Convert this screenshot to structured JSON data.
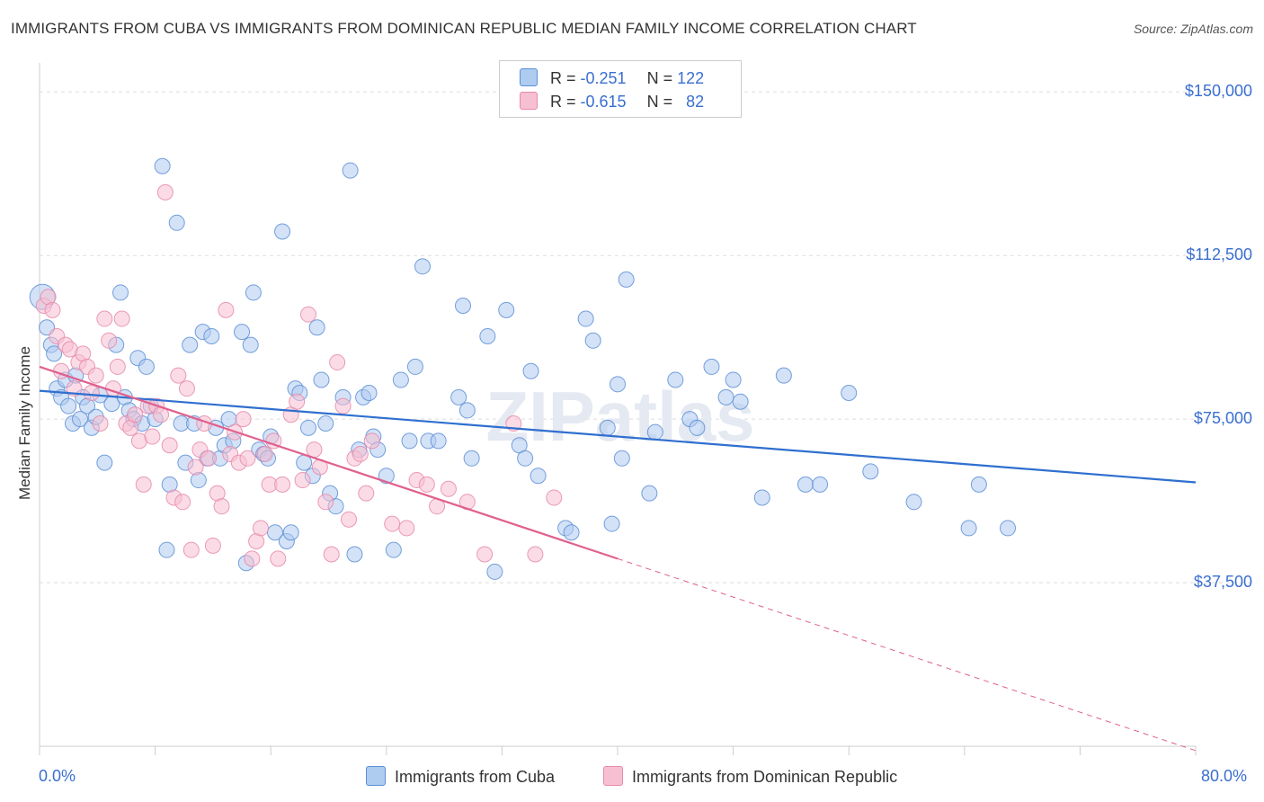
{
  "title": "IMMIGRANTS FROM CUBA VS IMMIGRANTS FROM DOMINICAN REPUBLIC MEDIAN FAMILY INCOME CORRELATION CHART",
  "source": "Source: ZipAtlas.com",
  "watermark": "ZIPatlas",
  "legend": {
    "rows": [
      {
        "r_label": "R =",
        "r_value": "-0.251",
        "n_label": "N =",
        "n_value": "122"
      },
      {
        "r_label": "R =",
        "r_value": "-0.615",
        "n_label": "N =",
        "n_value": "82"
      }
    ]
  },
  "colors": {
    "cuba_fill": "#aecbf0",
    "cuba_stroke": "#5d8fd6",
    "cuba_line": "#2f6fcf",
    "dr_fill": "#f7bfd2",
    "dr_stroke": "#e68aaa",
    "dr_line": "#e0608e",
    "grid": "#dddddd",
    "axis_text": "#3a6fd0"
  },
  "chart_data": {
    "type": "scatter",
    "title": "IMMIGRANTS FROM CUBA VS IMMIGRANTS FROM DOMINICAN REPUBLIC MEDIAN FAMILY INCOME CORRELATION CHART",
    "xlabel": "",
    "ylabel": "Median Family Income",
    "xlim": [
      0,
      80
    ],
    "ylim": [
      0,
      155000
    ],
    "x_tick_labels": [
      "0.0%",
      "80.0%"
    ],
    "y_ticks": [
      37500,
      75000,
      112500,
      150000
    ],
    "y_tick_labels": [
      "$37,500",
      "$75,000",
      "$112,500",
      "$150,000"
    ],
    "grid": true,
    "legend_position": "top-center",
    "series": [
      {
        "name": "Immigrants from Cuba",
        "trend": {
          "x": [
            0,
            80
          ],
          "y": [
            81500,
            60500
          ]
        },
        "points": [
          [
            0.2,
            103000
          ],
          [
            0.5,
            96000
          ],
          [
            0.8,
            92000
          ],
          [
            1.0,
            90000
          ],
          [
            1.2,
            82000
          ],
          [
            1.5,
            80000
          ],
          [
            1.8,
            84000
          ],
          [
            2.0,
            78000
          ],
          [
            2.3,
            74000
          ],
          [
            2.5,
            85000
          ],
          [
            2.8,
            75000
          ],
          [
            3.0,
            80000
          ],
          [
            3.3,
            78000
          ],
          [
            3.6,
            73000
          ],
          [
            3.9,
            75500
          ],
          [
            4.2,
            80500
          ],
          [
            4.5,
            65000
          ],
          [
            5.0,
            78500
          ],
          [
            5.3,
            92000
          ],
          [
            5.6,
            104000
          ],
          [
            5.9,
            80000
          ],
          [
            6.2,
            77000
          ],
          [
            6.5,
            75000
          ],
          [
            6.8,
            89000
          ],
          [
            7.1,
            74000
          ],
          [
            7.4,
            87000
          ],
          [
            7.7,
            78000
          ],
          [
            8.0,
            75000
          ],
          [
            8.5,
            133000
          ],
          [
            8.8,
            45000
          ],
          [
            9.0,
            60000
          ],
          [
            9.5,
            120000
          ],
          [
            9.8,
            74000
          ],
          [
            10.1,
            65000
          ],
          [
            10.4,
            92000
          ],
          [
            10.7,
            74000
          ],
          [
            11.0,
            61000
          ],
          [
            11.3,
            95000
          ],
          [
            11.6,
            66000
          ],
          [
            11.9,
            94000
          ],
          [
            12.2,
            73000
          ],
          [
            12.5,
            66000
          ],
          [
            12.8,
            69000
          ],
          [
            13.1,
            75000
          ],
          [
            13.4,
            70000
          ],
          [
            14.0,
            95000
          ],
          [
            14.3,
            42000
          ],
          [
            14.6,
            92000
          ],
          [
            14.8,
            104000
          ],
          [
            15.2,
            68000
          ],
          [
            15.5,
            67000
          ],
          [
            15.8,
            66000
          ],
          [
            16.0,
            71000
          ],
          [
            16.3,
            49000
          ],
          [
            16.8,
            118000
          ],
          [
            17.1,
            47000
          ],
          [
            17.4,
            49000
          ],
          [
            17.7,
            82000
          ],
          [
            18.0,
            81000
          ],
          [
            18.3,
            65000
          ],
          [
            18.6,
            73000
          ],
          [
            18.9,
            62000
          ],
          [
            19.2,
            96000
          ],
          [
            19.5,
            84000
          ],
          [
            19.8,
            74000
          ],
          [
            20.1,
            58000
          ],
          [
            20.5,
            55000
          ],
          [
            21.0,
            80000
          ],
          [
            21.5,
            132000
          ],
          [
            21.8,
            44000
          ],
          [
            22.1,
            68000
          ],
          [
            22.4,
            80000
          ],
          [
            22.8,
            81000
          ],
          [
            23.1,
            71000
          ],
          [
            23.4,
            68000
          ],
          [
            24.0,
            62000
          ],
          [
            24.5,
            45000
          ],
          [
            25.0,
            84000
          ],
          [
            25.6,
            70000
          ],
          [
            26.0,
            87000
          ],
          [
            26.5,
            110000
          ],
          [
            26.9,
            70000
          ],
          [
            27.6,
            70000
          ],
          [
            29.0,
            80000
          ],
          [
            29.3,
            101000
          ],
          [
            29.6,
            77000
          ],
          [
            29.9,
            66000
          ],
          [
            31.0,
            94000
          ],
          [
            31.5,
            40000
          ],
          [
            32.3,
            100000
          ],
          [
            33.2,
            69000
          ],
          [
            33.6,
            66000
          ],
          [
            34.0,
            86000
          ],
          [
            34.5,
            62000
          ],
          [
            36.4,
            50000
          ],
          [
            36.8,
            49000
          ],
          [
            37.8,
            98000
          ],
          [
            38.3,
            93000
          ],
          [
            39.3,
            73000
          ],
          [
            39.6,
            51000
          ],
          [
            40.0,
            83000
          ],
          [
            40.3,
            66000
          ],
          [
            40.6,
            107000
          ],
          [
            42.2,
            58000
          ],
          [
            42.6,
            72000
          ],
          [
            44.0,
            84000
          ],
          [
            45.0,
            75000
          ],
          [
            45.5,
            73000
          ],
          [
            46.5,
            87000
          ],
          [
            47.5,
            80000
          ],
          [
            48.0,
            84000
          ],
          [
            48.5,
            79000
          ],
          [
            50.0,
            57000
          ],
          [
            51.5,
            85000
          ],
          [
            53.0,
            60000
          ],
          [
            54.0,
            60000
          ],
          [
            56.0,
            81000
          ],
          [
            57.5,
            63000
          ],
          [
            60.5,
            56000
          ],
          [
            64.3,
            50000
          ],
          [
            65.0,
            60000
          ],
          [
            67.0,
            50000
          ]
        ]
      },
      {
        "name": "Immigrants from Dominican Republic",
        "trend": {
          "x": [
            0,
            40
          ],
          "y": [
            87000,
            43000
          ]
        },
        "trend_dashed": {
          "x": [
            40,
            80
          ],
          "y": [
            43000,
            -1000
          ]
        },
        "points": [
          [
            0.3,
            101000
          ],
          [
            0.6,
            103000
          ],
          [
            0.9,
            100000
          ],
          [
            1.2,
            94000
          ],
          [
            1.5,
            86000
          ],
          [
            1.8,
            92000
          ],
          [
            2.1,
            91000
          ],
          [
            2.4,
            82000
          ],
          [
            2.7,
            88000
          ],
          [
            3.0,
            90000
          ],
          [
            3.3,
            87000
          ],
          [
            3.6,
            81000
          ],
          [
            3.9,
            85000
          ],
          [
            4.2,
            74000
          ],
          [
            4.5,
            98000
          ],
          [
            4.8,
            93000
          ],
          [
            5.1,
            82000
          ],
          [
            5.4,
            87000
          ],
          [
            5.7,
            98000
          ],
          [
            6.0,
            74000
          ],
          [
            6.3,
            73000
          ],
          [
            6.6,
            76000
          ],
          [
            6.9,
            70000
          ],
          [
            7.2,
            60000
          ],
          [
            7.5,
            78000
          ],
          [
            7.8,
            71000
          ],
          [
            8.1,
            78000
          ],
          [
            8.4,
            76000
          ],
          [
            8.7,
            127000
          ],
          [
            9.0,
            69000
          ],
          [
            9.3,
            57000
          ],
          [
            9.6,
            85000
          ],
          [
            9.9,
            56000
          ],
          [
            10.2,
            82000
          ],
          [
            10.5,
            45000
          ],
          [
            10.8,
            64000
          ],
          [
            11.1,
            68000
          ],
          [
            11.4,
            74000
          ],
          [
            11.7,
            66000
          ],
          [
            12.0,
            46000
          ],
          [
            12.3,
            58000
          ],
          [
            12.6,
            55000
          ],
          [
            12.9,
            100000
          ],
          [
            13.2,
            67000
          ],
          [
            13.5,
            72000
          ],
          [
            13.8,
            65000
          ],
          [
            14.1,
            75000
          ],
          [
            14.4,
            66000
          ],
          [
            14.7,
            43000
          ],
          [
            15.0,
            47000
          ],
          [
            15.3,
            50000
          ],
          [
            15.6,
            67000
          ],
          [
            15.9,
            60000
          ],
          [
            16.2,
            70000
          ],
          [
            16.5,
            43000
          ],
          [
            16.8,
            60000
          ],
          [
            17.4,
            76000
          ],
          [
            17.8,
            79000
          ],
          [
            18.2,
            61000
          ],
          [
            18.6,
            99000
          ],
          [
            19.0,
            68000
          ],
          [
            19.4,
            64000
          ],
          [
            19.8,
            56000
          ],
          [
            20.2,
            44000
          ],
          [
            20.6,
            88000
          ],
          [
            21.0,
            78000
          ],
          [
            21.4,
            52000
          ],
          [
            21.8,
            66000
          ],
          [
            22.2,
            67000
          ],
          [
            22.6,
            58000
          ],
          [
            23.0,
            70000
          ],
          [
            24.4,
            51000
          ],
          [
            25.4,
            50000
          ],
          [
            26.1,
            61000
          ],
          [
            26.8,
            60000
          ],
          [
            27.5,
            55000
          ],
          [
            28.3,
            59000
          ],
          [
            29.6,
            56000
          ],
          [
            30.8,
            44000
          ],
          [
            32.8,
            74000
          ],
          [
            34.3,
            44000
          ],
          [
            35.6,
            57000
          ]
        ]
      }
    ]
  },
  "bottom_legend": [
    "Immigrants from Cuba",
    "Immigrants from Dominican Republic"
  ]
}
